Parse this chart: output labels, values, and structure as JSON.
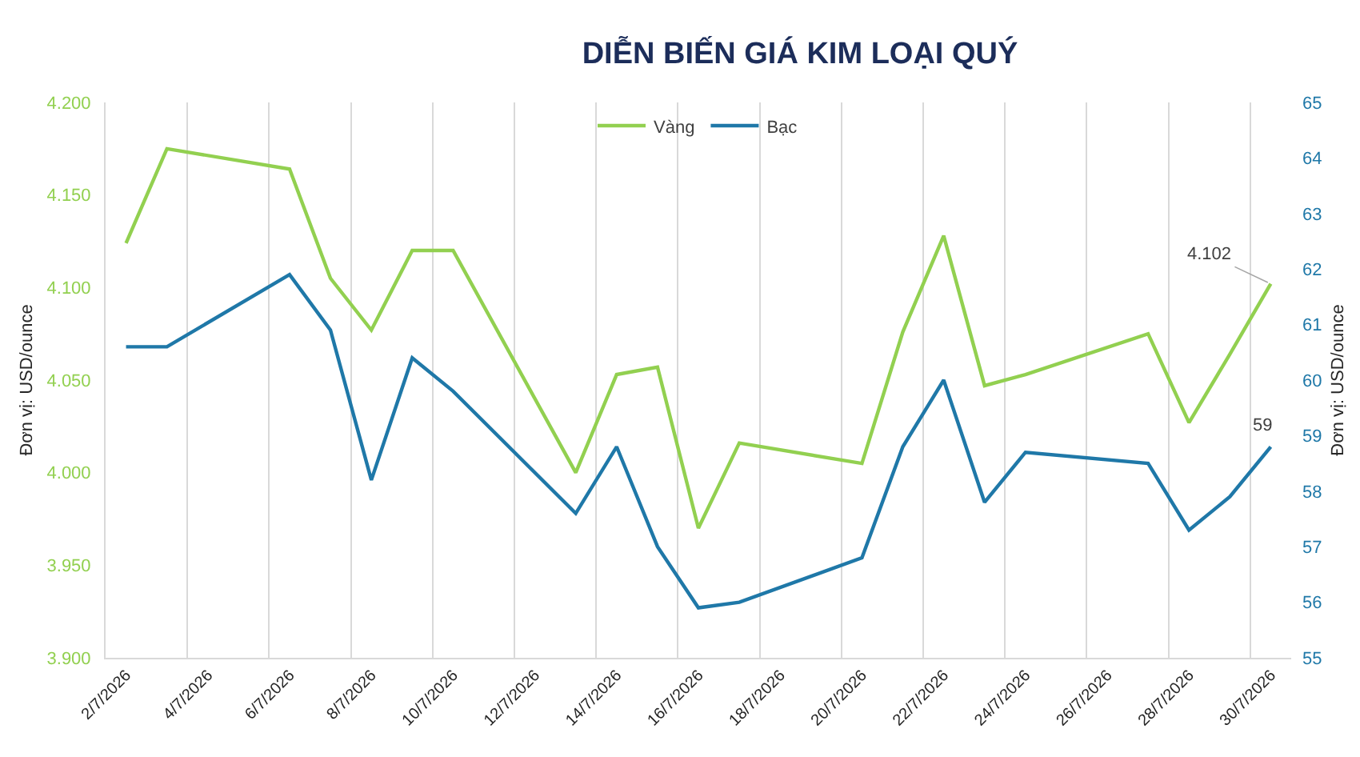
{
  "chart_data": {
    "type": "line",
    "title": "DIỄN BIẾN GIÁ KIM LOẠI QUÝ",
    "ylabel": "Đơn vị: USD/ounce",
    "y2label": "Đơn vị: USD/ounce",
    "x": [
      "2026-07-02",
      "2026-07-03",
      "2026-07-06",
      "2026-07-07",
      "2026-07-08",
      "2026-07-09",
      "2026-07-10",
      "2026-07-13",
      "2026-07-14",
      "2026-07-15",
      "2026-07-16",
      "2026-07-17",
      "2026-07-20",
      "2026-07-21",
      "2026-07-22",
      "2026-07-23",
      "2026-07-24",
      "2026-07-27",
      "2026-07-28",
      "2026-07-29",
      "2026-07-30"
    ],
    "series": [
      {
        "name": "Vàng",
        "color": "#92d050",
        "values": [
          4124,
          4175,
          4164,
          4105,
          4077,
          4120,
          4120,
          4000,
          4053,
          4057,
          3970,
          4016,
          4005,
          4076,
          4128,
          4047,
          4053,
          4075,
          4027,
          4064,
          4102
        ],
        "value_labels": [
          null,
          null,
          null,
          null,
          null,
          null,
          null,
          null,
          null,
          null,
          null,
          null,
          null,
          null,
          null,
          null,
          null,
          null,
          null,
          null,
          "4.102"
        ]
      },
      {
        "name": "Bạc",
        "color": "#1f78a8",
        "axis": "y2",
        "values": [
          60.6,
          60.6,
          61.9,
          60.9,
          58.2,
          60.4,
          59.8,
          57.6,
          58.8,
          57.0,
          55.9,
          56.0,
          56.8,
          58.8,
          60.0,
          57.8,
          58.7,
          58.5,
          57.3,
          57.9,
          58.8
        ],
        "value_labels": [
          null,
          null,
          null,
          null,
          null,
          null,
          null,
          null,
          null,
          null,
          null,
          null,
          null,
          null,
          null,
          null,
          null,
          null,
          null,
          null,
          "59"
        ]
      }
    ],
    "xlim": [
      "2026-07-01T12:00",
      "2026-07-30T12:00"
    ],
    "xticks": [
      {
        "value": "2026-07-01T12:00",
        "label": null
      },
      {
        "value": "2026-07-02",
        "label": "2/7/2026"
      },
      {
        "value": "2026-07-03T12:00",
        "label": null
      },
      {
        "value": "2026-07-04",
        "label": "4/7/2026"
      },
      {
        "value": "2026-07-05T12:00",
        "label": null
      },
      {
        "value": "2026-07-06",
        "label": "6/7/2026"
      },
      {
        "value": "2026-07-07T12:00",
        "label": null
      },
      {
        "value": "2026-07-08",
        "label": "8/7/2026"
      },
      {
        "value": "2026-07-09T12:00",
        "label": null
      },
      {
        "value": "2026-07-10",
        "label": "10/7/2026"
      },
      {
        "value": "2026-07-11T12:00",
        "label": null
      },
      {
        "value": "2026-07-12",
        "label": "12/7/2026"
      },
      {
        "value": "2026-07-13T12:00",
        "label": null
      },
      {
        "value": "2026-07-14",
        "label": "14/7/2026"
      },
      {
        "value": "2026-07-15T12:00",
        "label": null
      },
      {
        "value": "2026-07-16",
        "label": "16/7/2026"
      },
      {
        "value": "2026-07-17T12:00",
        "label": null
      },
      {
        "value": "2026-07-18",
        "label": "18/7/2026"
      },
      {
        "value": "2026-07-19T12:00",
        "label": null
      },
      {
        "value": "2026-07-20",
        "label": "20/7/2026"
      },
      {
        "value": "2026-07-21T12:00",
        "label": null
      },
      {
        "value": "2026-07-22",
        "label": "22/7/2026"
      },
      {
        "value": "2026-07-23T12:00",
        "label": null
      },
      {
        "value": "2026-07-24",
        "label": "24/7/2026"
      },
      {
        "value": "2026-07-25T12:00",
        "label": null
      },
      {
        "value": "2026-07-26",
        "label": "26/7/2026"
      },
      {
        "value": "2026-07-27T12:00",
        "label": null
      },
      {
        "value": "2026-07-28",
        "label": "28/7/2026"
      },
      {
        "value": "2026-07-29T12:00",
        "label": null
      },
      {
        "value": "2026-07-30",
        "label": "30/7/2026"
      }
    ],
    "ylim": [
      3900,
      4200
    ],
    "yticks": [
      {
        "value": 3900,
        "label": "3.900"
      },
      {
        "value": 3950,
        "label": "3.950"
      },
      {
        "value": 4000,
        "label": "4.000"
      },
      {
        "value": 4050,
        "label": "4.050"
      },
      {
        "value": 4100,
        "label": "4.100"
      },
      {
        "value": 4150,
        "label": "4.150"
      },
      {
        "value": 4200,
        "label": "4.200"
      }
    ],
    "y2lim": [
      55,
      65
    ],
    "y2ticks": [
      55,
      56,
      57,
      58,
      59,
      60,
      61,
      62,
      63,
      64,
      65
    ],
    "grid": "x",
    "legend": "top",
    "marker": "none",
    "line_style": "solid"
  }
}
